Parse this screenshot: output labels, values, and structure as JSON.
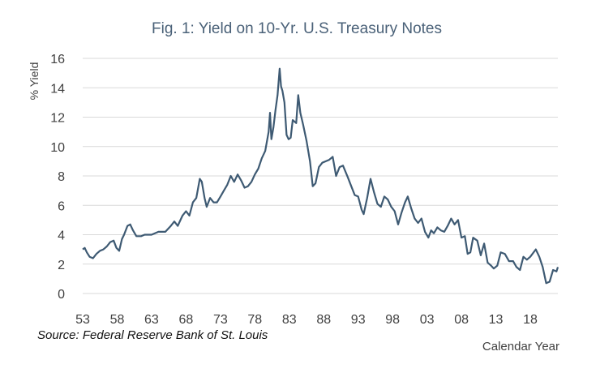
{
  "chart_data": {
    "type": "line",
    "title": "Fig. 1: Yield on 10-Yr. U.S. Treasury Notes",
    "xlabel": "Calendar Year",
    "ylabel": "% Yield",
    "source": "Source:  Federal Reserve  Bank of St. Louis",
    "xlim": [
      1953,
      2022
    ],
    "ylim": [
      0,
      16
    ],
    "yticks": [
      0,
      2,
      4,
      6,
      8,
      10,
      12,
      14,
      16
    ],
    "xtick_values": [
      1953,
      1958,
      1963,
      1968,
      1973,
      1978,
      1983,
      1988,
      1993,
      1998,
      2003,
      2008,
      2013,
      2018
    ],
    "xtick_labels": [
      "53",
      "58",
      "63",
      "68",
      "73",
      "78",
      "83",
      "88",
      "93",
      "98",
      "03",
      "08",
      "13",
      "18"
    ],
    "grid": true,
    "line_color": "#3e5a73",
    "series": [
      {
        "x": [
          1953.0,
          1953.3,
          1953.6,
          1954.0,
          1954.5,
          1955.0,
          1955.5,
          1956.0,
          1956.5,
          1957.0,
          1957.5,
          1957.9,
          1958.3,
          1958.7,
          1959.0,
          1959.5,
          1959.9,
          1960.3,
          1960.8,
          1961.5,
          1962.0,
          1963.0,
          1964.0,
          1965.0,
          1965.8,
          1966.3,
          1966.8,
          1967.5,
          1968.0,
          1968.5,
          1969.0,
          1969.5,
          1970.0,
          1970.3,
          1970.7,
          1971.0,
          1971.5,
          1972.0,
          1972.5,
          1973.0,
          1973.5,
          1974.0,
          1974.5,
          1975.0,
          1975.5,
          1976.0,
          1976.5,
          1977.0,
          1977.5,
          1978.0,
          1978.5,
          1979.0,
          1979.5,
          1980.0,
          1980.2,
          1980.4,
          1980.7,
          1981.0,
          1981.3,
          1981.6,
          1981.8,
          1982.0,
          1982.3,
          1982.6,
          1982.9,
          1983.2,
          1983.5,
          1984.0,
          1984.3,
          1984.6,
          1985.0,
          1985.5,
          1986.0,
          1986.4,
          1986.8,
          1987.3,
          1987.8,
          1988.3,
          1988.8,
          1989.3,
          1989.8,
          1990.3,
          1990.8,
          1991.5,
          1992.0,
          1992.5,
          1993.0,
          1993.5,
          1993.8,
          1994.3,
          1994.8,
          1995.3,
          1995.8,
          1996.3,
          1996.8,
          1997.3,
          1997.8,
          1998.3,
          1998.8,
          1999.3,
          1999.8,
          2000.2,
          2000.7,
          2001.2,
          2001.7,
          2002.2,
          2002.7,
          2003.2,
          2003.6,
          2004.0,
          2004.5,
          2005.0,
          2005.5,
          2006.0,
          2006.5,
          2007.0,
          2007.5,
          2008.0,
          2008.5,
          2008.9,
          2009.3,
          2009.7,
          2010.3,
          2010.8,
          2011.3,
          2011.8,
          2012.3,
          2012.7,
          2013.2,
          2013.7,
          2014.3,
          2014.9,
          2015.5,
          2016.0,
          2016.5,
          2017.0,
          2017.5,
          2018.0,
          2018.8,
          2019.3,
          2019.8,
          2020.3,
          2020.8,
          2021.3,
          2021.8,
          2022.0
        ],
        "y": [
          3.0,
          3.1,
          2.8,
          2.5,
          2.4,
          2.7,
          2.9,
          3.0,
          3.2,
          3.5,
          3.6,
          3.1,
          2.9,
          3.7,
          4.0,
          4.6,
          4.7,
          4.3,
          3.9,
          3.9,
          4.0,
          4.0,
          4.2,
          4.2,
          4.6,
          4.9,
          4.6,
          5.3,
          5.6,
          5.3,
          6.2,
          6.5,
          7.8,
          7.6,
          6.5,
          5.9,
          6.5,
          6.2,
          6.2,
          6.6,
          7.0,
          7.4,
          8.0,
          7.6,
          8.1,
          7.7,
          7.2,
          7.3,
          7.6,
          8.1,
          8.5,
          9.2,
          9.7,
          11.0,
          12.3,
          10.5,
          11.3,
          12.5,
          13.5,
          15.3,
          14.1,
          13.8,
          13.0,
          10.8,
          10.5,
          10.6,
          11.8,
          11.6,
          13.5,
          12.3,
          11.5,
          10.4,
          9.0,
          7.3,
          7.5,
          8.6,
          8.9,
          9.0,
          9.1,
          9.3,
          8.0,
          8.6,
          8.7,
          7.9,
          7.3,
          6.7,
          6.6,
          5.7,
          5.4,
          6.5,
          7.8,
          6.9,
          6.1,
          5.9,
          6.6,
          6.4,
          5.9,
          5.6,
          4.7,
          5.5,
          6.2,
          6.6,
          5.8,
          5.1,
          4.8,
          5.1,
          4.2,
          3.8,
          4.3,
          4.1,
          4.5,
          4.3,
          4.2,
          4.6,
          5.1,
          4.7,
          5.0,
          3.8,
          3.9,
          2.7,
          2.8,
          3.8,
          3.6,
          2.6,
          3.4,
          2.1,
          1.9,
          1.7,
          1.9,
          2.8,
          2.7,
          2.2,
          2.2,
          1.8,
          1.6,
          2.5,
          2.3,
          2.5,
          3.0,
          2.5,
          1.8,
          0.7,
          0.8,
          1.6,
          1.5,
          1.8
        ]
      }
    ]
  }
}
